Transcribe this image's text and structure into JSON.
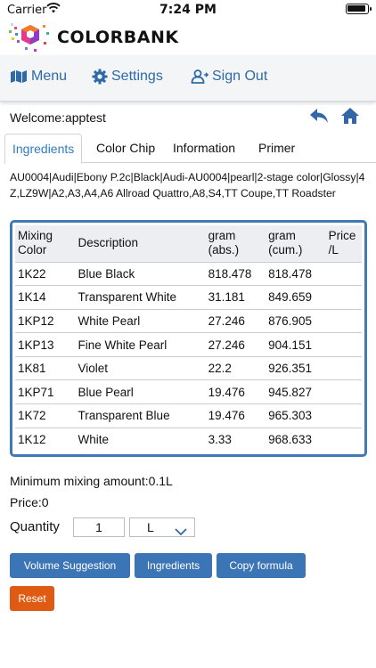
{
  "status_bar": {
    "carrier": "Carrier",
    "time": "7:24 PM"
  },
  "brand": {
    "name": "COLORBANK"
  },
  "navbar": {
    "menu": "Menu",
    "settings": "Settings",
    "sign_out": "Sign Out"
  },
  "welcome": "Welcome:apptest",
  "tabs": [
    "Ingredients",
    "Color Chip",
    "Information",
    "Primer"
  ],
  "vehicle_info": "AU0004|Audi|Ebony P.2c|Black|Audi-AU0004|pearl|2-stage color|Glossy|4Z,LZ9W|A2,A3,A4,A6 Allroad Quattro,A8,S4,TT Coupe,TT Roadster",
  "table": {
    "headers": [
      "Mixing Color",
      "Description",
      "gram (abs.)",
      "gram (cum.)",
      "Price /L"
    ],
    "rows": [
      [
        "1K22",
        "Blue Black",
        "818.478",
        "818.478",
        ""
      ],
      [
        "1K14",
        "Transparent White",
        "31.181",
        "849.659",
        ""
      ],
      [
        "1KP12",
        "White Pearl",
        "27.246",
        "876.905",
        ""
      ],
      [
        "1KP13",
        "Fine White Pearl",
        "27.246",
        "904.151",
        ""
      ],
      [
        "1K81",
        "Violet",
        "22.2",
        "926.351",
        ""
      ],
      [
        "1KP71",
        "Blue Pearl",
        "19.476",
        "945.827",
        ""
      ],
      [
        "1K72",
        "Transparent Blue",
        "19.476",
        "965.303",
        ""
      ],
      [
        "1K12",
        "White",
        "3.33",
        "968.633",
        ""
      ]
    ]
  },
  "min_amount": "Minimum mixing amount:0.1L",
  "price": "Price:0",
  "quantity": {
    "label": "Quantity",
    "value": "1",
    "unit": "L"
  },
  "buttons": {
    "volume_suggestion": "Volume Suggestion",
    "ingredients": "Ingredients",
    "copy_formula": "Copy formula",
    "reset": "Reset"
  },
  "colors": {
    "accent": "#2e6aa8",
    "button_blue": "#3b75b5",
    "button_orange": "#df5b14",
    "table_border": "#3f7ab7"
  }
}
